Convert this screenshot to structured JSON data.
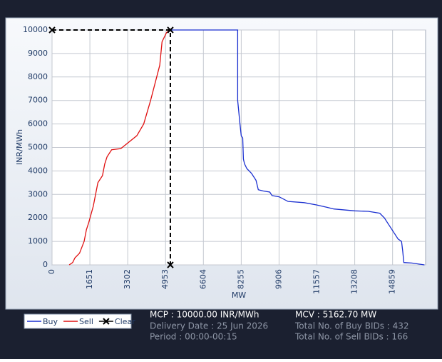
{
  "chart_data": {
    "type": "line",
    "xlabel": "MW",
    "ylabel": "INR/MWh",
    "xlim": [
      0,
      16300
    ],
    "ylim": [
      0,
      10000
    ],
    "xticks": [
      0,
      1651,
      3302,
      4953,
      6604,
      8255,
      9906,
      11557,
      13208,
      14859
    ],
    "yticks": [
      0,
      1000,
      2000,
      3000,
      4000,
      5000,
      6000,
      7000,
      8000,
      9000,
      10000
    ],
    "grid": true,
    "series": [
      {
        "name": "Buy",
        "color": "#1a2fd0",
        "x": [
          5163,
          8100,
          8100,
          8200,
          8255,
          8320,
          8350,
          8400,
          8500,
          8700,
          8900,
          9000,
          9200,
          9500,
          9600,
          9906,
          10300,
          11000,
          11557,
          12000,
          12300,
          13208,
          13800,
          14300,
          14500,
          14700,
          14900,
          15100,
          15250,
          15300,
          15350,
          15700,
          16250
        ],
        "values": [
          10000,
          10000,
          7000,
          6000,
          5500,
          5400,
          4500,
          4300,
          4100,
          3900,
          3600,
          3200,
          3150,
          3100,
          2950,
          2900,
          2700,
          2650,
          2550,
          2450,
          2380,
          2300,
          2280,
          2200,
          2000,
          1700,
          1400,
          1100,
          1000,
          600,
          100,
          80,
          0
        ]
      },
      {
        "name": "Sell",
        "color": "#e01010",
        "x": [
          748,
          900,
          1000,
          1200,
          1400,
          1500,
          1600,
          1800,
          1900,
          2000,
          2200,
          2300,
          2400,
          2600,
          3000,
          3700,
          4000,
          4300,
          4700,
          4800,
          5000,
          5163
        ],
        "values": [
          0,
          100,
          300,
          500,
          1000,
          1500,
          1800,
          2500,
          3000,
          3500,
          3800,
          4300,
          4600,
          4900,
          4950,
          5500,
          6000,
          7000,
          8500,
          9500,
          9900,
          10000
        ]
      },
      {
        "name": "Clear",
        "color": "#000000",
        "dashed": true,
        "marker": "x",
        "x": [
          0,
          5162.7,
          5162.7
        ],
        "values": [
          10000,
          10000,
          0
        ]
      }
    ]
  },
  "info": {
    "mcp": "MCP : 10000.00 INR/MWh",
    "mcv": "MCV : 5162.70 MW",
    "date": "Delivery Date : 25 Jun 2026",
    "buy_bids": "Total No. of Buy BIDs : 432",
    "period": "Period :  00:00-00:15",
    "sell_bids": "Total No. of Sell BIDs : 166"
  }
}
